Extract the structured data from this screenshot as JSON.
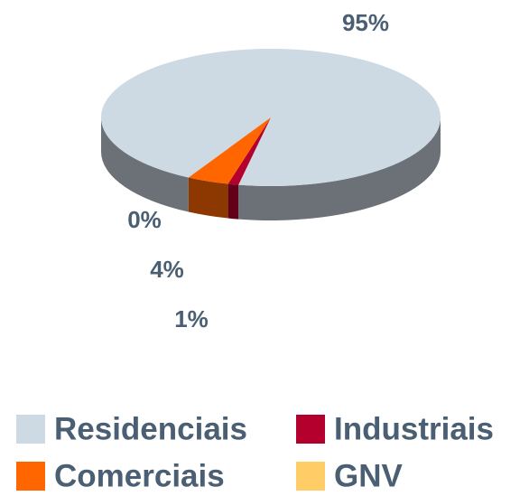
{
  "chart_data": {
    "type": "pie",
    "categories": [
      "Residenciais",
      "Industriais",
      "Comerciais",
      "GNV"
    ],
    "values": [
      95,
      1,
      4,
      0
    ],
    "value_labels": [
      "95%",
      "1%",
      "4%",
      "0%"
    ],
    "colors": [
      "#cdd9e3",
      "#b3002d",
      "#ff6600",
      "#ffcc66"
    ],
    "legend": "bottom"
  }
}
